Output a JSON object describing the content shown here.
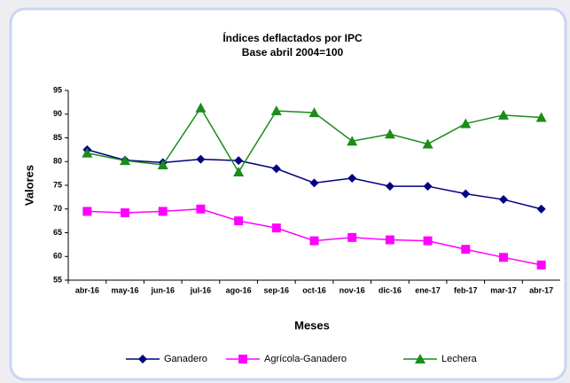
{
  "chart_data": {
    "type": "line",
    "title": "Índices deflactados por IPC",
    "subtitle": "Base abril 2004=100",
    "y_label": "Valores",
    "x_label": "Meses",
    "categories": [
      "abr-16",
      "may-16",
      "jun-16",
      "jul-16",
      "ago-16",
      "sep-16",
      "oct-16",
      "nov-16",
      "dic-16",
      "ene-17",
      "feb-17",
      "mar-17",
      "abr-17"
    ],
    "series": [
      {
        "name": "Ganadero",
        "color": "#000080",
        "marker": "diamond",
        "values": [
          82.5,
          80.3,
          79.8,
          80.5,
          80.2,
          78.5,
          75.5,
          76.5,
          74.8,
          74.8,
          73.2,
          72.0,
          70.0
        ]
      },
      {
        "name": "Agrícola-Ganadero",
        "color": "#ff00ff",
        "marker": "square",
        "values": [
          69.5,
          69.2,
          69.5,
          70.0,
          67.5,
          66.0,
          63.3,
          64.0,
          63.5,
          63.3,
          61.5,
          59.8,
          58.2
        ]
      },
      {
        "name": "Lechera",
        "color": "#1a8c1a",
        "marker": "triangle",
        "values": [
          81.8,
          80.2,
          79.3,
          91.3,
          77.8,
          90.7,
          90.3,
          84.3,
          85.8,
          83.7,
          88.0,
          89.8,
          89.3
        ]
      }
    ],
    "ylim": [
      55,
      95
    ],
    "yticks": [
      55,
      60,
      65,
      70,
      75,
      80,
      85,
      90,
      95
    ],
    "grid": false,
    "legend": "bottom"
  }
}
